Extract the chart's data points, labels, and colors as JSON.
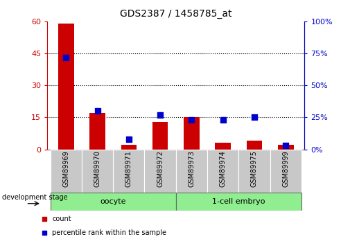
{
  "title": "GDS2387 / 1458785_at",
  "samples": [
    "GSM89969",
    "GSM89970",
    "GSM89971",
    "GSM89972",
    "GSM89973",
    "GSM89974",
    "GSM89975",
    "GSM89999"
  ],
  "counts": [
    59,
    17,
    2,
    13,
    15,
    3,
    4,
    2
  ],
  "percentile_ranks": [
    72,
    30,
    8,
    27,
    23,
    23,
    25,
    3
  ],
  "left_ylim": [
    0,
    60
  ],
  "left_yticks": [
    0,
    15,
    30,
    45,
    60
  ],
  "right_ylim": [
    0,
    100
  ],
  "right_yticks": [
    0,
    25,
    50,
    75,
    100
  ],
  "left_tick_color": "#CC0000",
  "right_tick_color": "#0000CC",
  "bar_color": "#CC0000",
  "dot_color": "#0000CC",
  "sample_bg_color": "#C8C8C8",
  "oocyte_color": "#90EE90",
  "embryo_color": "#90EE90",
  "bar_width": 0.5,
  "dot_size": 28,
  "legend_count_label": "count",
  "legend_pct_label": "percentile rank within the sample",
  "stage_label": "development stage",
  "oocyte_label": "oocyte",
  "embryo_label": "1-cell embryo",
  "oocyte_indices": [
    0,
    1,
    2,
    3
  ],
  "embryo_indices": [
    4,
    5,
    6,
    7
  ]
}
